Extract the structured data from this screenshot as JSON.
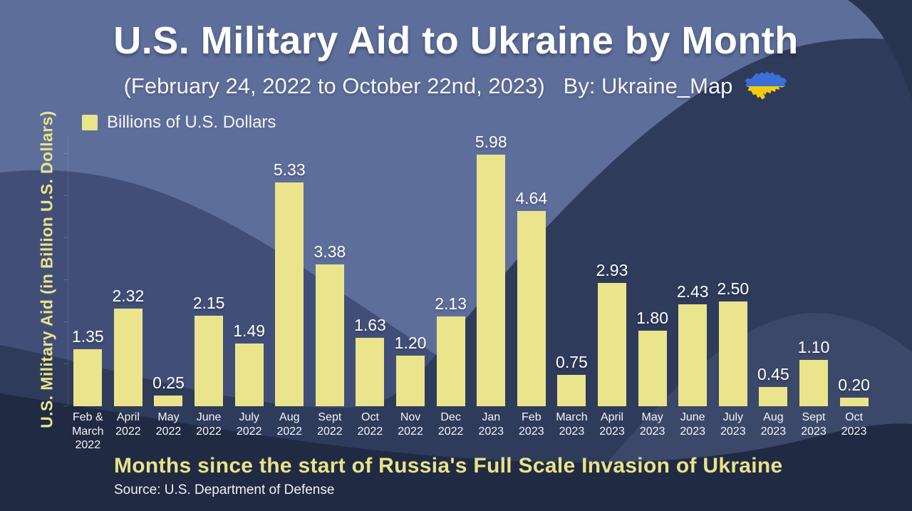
{
  "header": {
    "title": "U.S. Military Aid to Ukraine by Month",
    "subtitle": "(February 24, 2022 to October 22nd, 2023)",
    "byline": "By: Ukraine_Map",
    "flag_icon": "ukraine-map-flag-icon"
  },
  "legend": {
    "label": "Billions of U.S. Dollars"
  },
  "axes": {
    "y_label": "U.S. Military Aid (in Billion U.S. Dollars)",
    "x_label": "Months since the start of Russia's Full Scale Invasion of Ukraine"
  },
  "source": "Source: U.S. Department of Defense",
  "colors": {
    "bar": "#EAE48D",
    "value_label": "#FFFFFF",
    "yellow_text": "#E9E388",
    "bg_base": "#5E6E9B",
    "bg_hill": "#414F78",
    "bg_mountain": "#2E3B5B",
    "bg_corner": "#293450",
    "bg_wave": "#3B4869",
    "bg_bottom": "#202A43",
    "flag_blue": "#3A6FD8",
    "flag_yellow": "#F5CB0B"
  },
  "chart_data": {
    "type": "bar",
    "title": "U.S. Military Aid to Ukraine by Month",
    "subtitle": "(February 24, 2022 to October 22nd, 2023)",
    "unit": "Billions of U.S. Dollars",
    "xlabel": "Months since the start of Russia's Full Scale Invasion of Ukraine",
    "ylabel": "U.S. Military Aid (in Billion U.S. Dollars)",
    "source": "Source: U.S. Department of Defense",
    "legend_position": "top-left",
    "grid": false,
    "ylim": [
      0,
      6.2
    ],
    "categories": [
      "Feb &\nMarch\n2022",
      "April\n2022",
      "May\n2022",
      "June\n2022",
      "July\n2022",
      "Aug\n2022",
      "Sept\n2022",
      "Oct\n2022",
      "Nov\n2022",
      "Dec\n2022",
      "Jan\n2023",
      "Feb\n2023",
      "March\n2023",
      "April\n2023",
      "May\n2023",
      "June\n2023",
      "July\n2023",
      "Aug\n2023",
      "Sept\n2023",
      "Oct\n2023"
    ],
    "values": [
      1.35,
      2.32,
      0.25,
      2.15,
      1.49,
      5.33,
      3.38,
      1.63,
      1.2,
      2.13,
      5.98,
      4.64,
      0.75,
      2.93,
      1.8,
      2.43,
      2.5,
      0.45,
      1.1,
      0.2
    ],
    "value_labels": [
      "1.35",
      "2.32",
      "0.25",
      "2.15",
      "1.49",
      "5.33",
      "3.38",
      "1.63",
      "1.20",
      "2.13",
      "5.98",
      "4.64",
      "0.75",
      "2.93",
      "1.80",
      "2.43",
      "2.50",
      "0.45",
      "1.10",
      "0.20"
    ]
  }
}
